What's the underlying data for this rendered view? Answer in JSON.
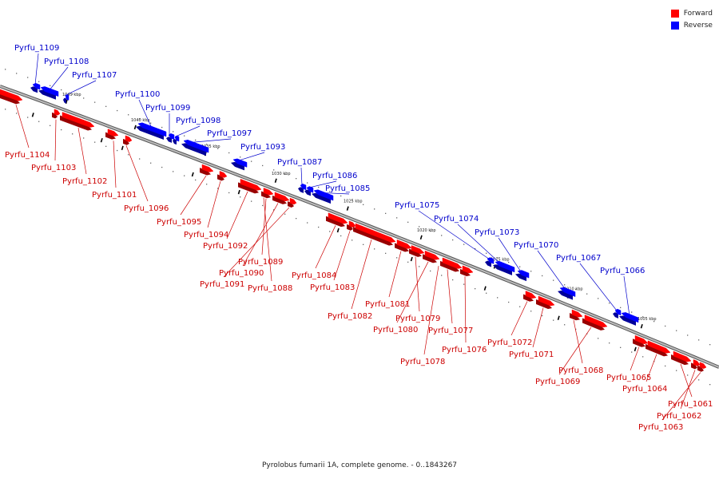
{
  "legend": {
    "items": [
      {
        "label": "Forward",
        "color": "#ff0000"
      },
      {
        "label": "Reverse",
        "color": "#0000ff"
      }
    ]
  },
  "caption": "Pyrolobus fumarii 1A, complete genome. - 0..1843267",
  "colors": {
    "forward": "#ff0000",
    "reverse": "#0000ff",
    "forward_label": "#cc0000",
    "reverse_label": "#0000cc",
    "backbone": "#999999"
  },
  "ticks": [
    {
      "label": "1045 kbp",
      "kbp": 1045
    },
    {
      "label": "1040 kbp",
      "kbp": 1040
    },
    {
      "label": "1035 kbp",
      "kbp": 1035
    },
    {
      "label": "1030 kbp",
      "kbp": 1030
    },
    {
      "label": "1025 kbp",
      "kbp": 1025
    },
    {
      "label": "1020 kbp",
      "kbp": 1020
    },
    {
      "label": "1015 kbp",
      "kbp": 1015
    },
    {
      "label": "1010 kbp",
      "kbp": 1010
    },
    {
      "label": "1005 kbp",
      "kbp": 1005
    }
  ],
  "genes": [
    {
      "label": "Pyrfu_1109",
      "strand": "reverse"
    },
    {
      "label": "Pyrfu_1108",
      "strand": "reverse"
    },
    {
      "label": "Pyrfu_1107",
      "strand": "reverse"
    },
    {
      "label": "Pyrfu_1100",
      "strand": "reverse"
    },
    {
      "label": "Pyrfu_1099",
      "strand": "reverse"
    },
    {
      "label": "Pyrfu_1098",
      "strand": "reverse"
    },
    {
      "label": "Pyrfu_1097",
      "strand": "reverse"
    },
    {
      "label": "Pyrfu_1093",
      "strand": "reverse"
    },
    {
      "label": "Pyrfu_1087",
      "strand": "reverse"
    },
    {
      "label": "Pyrfu_1086",
      "strand": "reverse"
    },
    {
      "label": "Pyrfu_1085",
      "strand": "reverse"
    },
    {
      "label": "Pyrfu_1075",
      "strand": "reverse"
    },
    {
      "label": "Pyrfu_1074",
      "strand": "reverse"
    },
    {
      "label": "Pyrfu_1073",
      "strand": "reverse"
    },
    {
      "label": "Pyrfu_1070",
      "strand": "reverse"
    },
    {
      "label": "Pyrfu_1067",
      "strand": "reverse"
    },
    {
      "label": "Pyrfu_1066",
      "strand": "reverse"
    },
    {
      "label": "Pyrfu_1104",
      "strand": "forward"
    },
    {
      "label": "Pyrfu_1103",
      "strand": "forward"
    },
    {
      "label": "Pyrfu_1102",
      "strand": "forward"
    },
    {
      "label": "Pyrfu_1101",
      "strand": "forward"
    },
    {
      "label": "Pyrfu_1096",
      "strand": "forward"
    },
    {
      "label": "Pyrfu_1095",
      "strand": "forward"
    },
    {
      "label": "Pyrfu_1094",
      "strand": "forward"
    },
    {
      "label": "Pyrfu_1092",
      "strand": "forward"
    },
    {
      "label": "Pyrfu_1089",
      "strand": "forward"
    },
    {
      "label": "Pyrfu_1090",
      "strand": "forward"
    },
    {
      "label": "Pyrfu_1091",
      "strand": "forward"
    },
    {
      "label": "Pyrfu_1088",
      "strand": "forward"
    },
    {
      "label": "Pyrfu_1084",
      "strand": "forward"
    },
    {
      "label": "Pyrfu_1083",
      "strand": "forward"
    },
    {
      "label": "Pyrfu_1082",
      "strand": "forward"
    },
    {
      "label": "Pyrfu_1081",
      "strand": "forward"
    },
    {
      "label": "Pyrfu_1079",
      "strand": "forward"
    },
    {
      "label": "Pyrfu_1080",
      "strand": "forward"
    },
    {
      "label": "Pyrfu_1077",
      "strand": "forward"
    },
    {
      "label": "Pyrfu_1076",
      "strand": "forward"
    },
    {
      "label": "Pyrfu_1078",
      "strand": "forward"
    },
    {
      "label": "Pyrfu_1072",
      "strand": "forward"
    },
    {
      "label": "Pyrfu_1071",
      "strand": "forward"
    },
    {
      "label": "Pyrfu_1068",
      "strand": "forward"
    },
    {
      "label": "Pyrfu_1069",
      "strand": "forward"
    },
    {
      "label": "Pyrfu_1065",
      "strand": "forward"
    },
    {
      "label": "Pyrfu_1064",
      "strand": "forward"
    },
    {
      "label": "Pyrfu_1061",
      "strand": "forward"
    },
    {
      "label": "Pyrfu_1062",
      "strand": "forward"
    },
    {
      "label": "Pyrfu_1063",
      "strand": "forward"
    }
  ]
}
